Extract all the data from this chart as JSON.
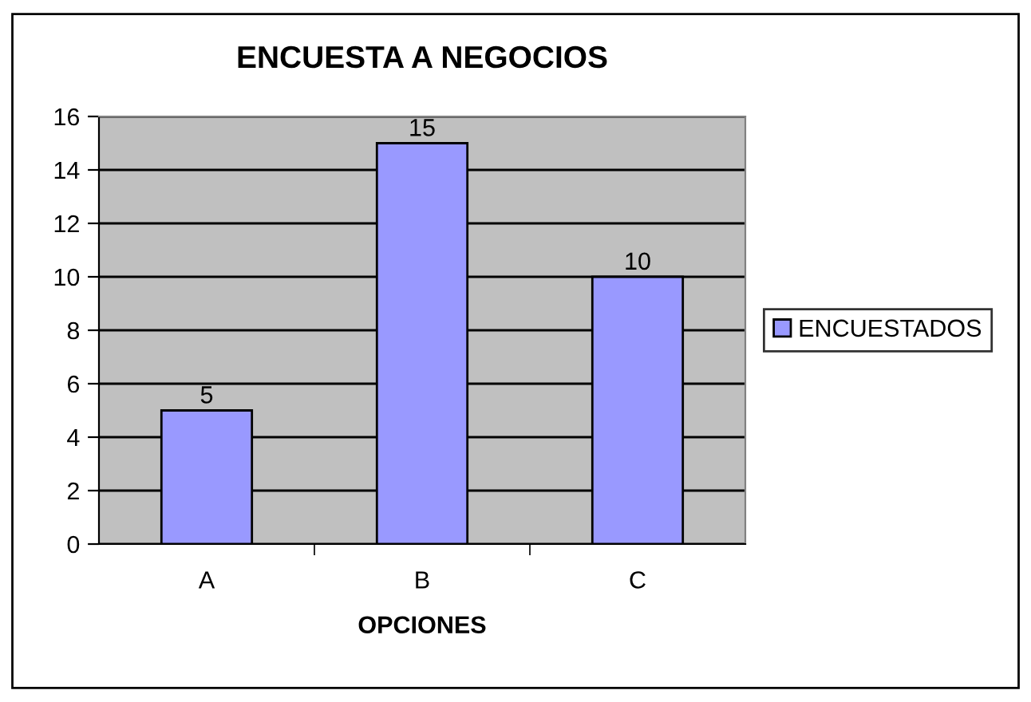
{
  "chart_data": {
    "type": "bar",
    "title": "ENCUESTA A NEGOCIOS",
    "xlabel": "OPCIONES",
    "categories": [
      "A",
      "B",
      "C"
    ],
    "series": [
      {
        "name": "ENCUESTADOS",
        "color": "#9999ff",
        "values": [
          5,
          15,
          10
        ]
      }
    ],
    "ylim": [
      0,
      16
    ],
    "yticks": [
      0,
      2,
      4,
      6,
      8,
      10,
      12,
      14,
      16
    ],
    "grid": "y",
    "legend": "right",
    "data_labels": true
  }
}
